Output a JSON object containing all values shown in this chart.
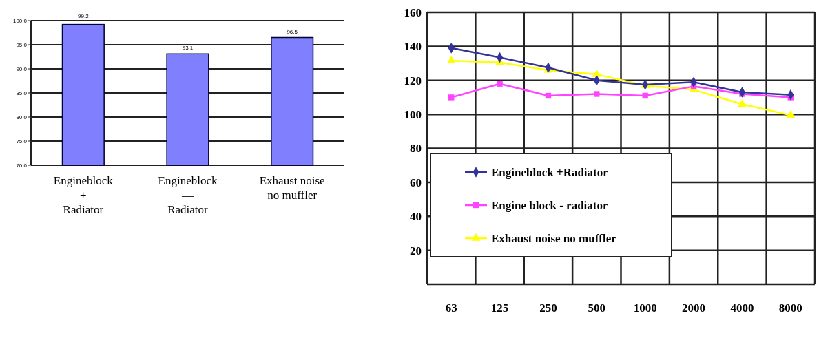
{
  "chart_data": [
    {
      "type": "bar",
      "categories": [
        "Engineblock\n+\nRadiator",
        "Engineblock\n—\nRadiator",
        "Exhaust noise\nno muffler"
      ],
      "values": [
        99.2,
        93.1,
        96.5
      ],
      "color": "#8080ff",
      "ylim": [
        70,
        100
      ],
      "yticks": [
        {
          "value": 70,
          "label": "70.0"
        },
        {
          "value": 75,
          "label": "75.0"
        },
        {
          "value": 80,
          "label": "80.0"
        },
        {
          "value": 85,
          "label": "85.0"
        },
        {
          "value": 90,
          "label": "90.0"
        },
        {
          "value": 95,
          "label": "95.0"
        },
        {
          "value": 100,
          "label": "100.0"
        }
      ],
      "grid": "y",
      "data_labels": true
    },
    {
      "type": "line",
      "categories": [
        "63",
        "125",
        "250",
        "500",
        "1000",
        "2000",
        "4000",
        "8000"
      ],
      "series": [
        {
          "name": "Engineblock +Radiator",
          "color": "#333399",
          "marker": "diamond",
          "values": [
            139,
            133.5,
            127.5,
            120,
            117.5,
            119,
            113,
            111.5
          ]
        },
        {
          "name": "Engine block - radiator",
          "color": "#ff44ff",
          "marker": "square",
          "values": [
            110,
            118,
            111,
            112,
            111,
            116.5,
            112,
            110
          ]
        },
        {
          "name": "Exhaust noise no muffler",
          "color": "#ffff00",
          "marker": "triangle",
          "values": [
            131.5,
            130.5,
            126,
            123.5,
            117,
            114.5,
            106,
            99.5
          ]
        }
      ],
      "ylim": [
        0,
        160
      ],
      "yticks": [
        20,
        40,
        60,
        80,
        100,
        120,
        140,
        160
      ],
      "grid": true,
      "legend": "bottom left"
    }
  ]
}
